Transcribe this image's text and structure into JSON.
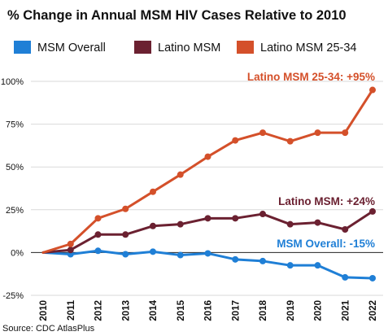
{
  "chart_data": {
    "type": "line",
    "title": "% Change in Annual MSM HIV Cases Relative to 2010",
    "source": "Source: CDC AtlasPlus",
    "x": [
      "2010",
      "2011",
      "2012",
      "2013",
      "2014",
      "2015",
      "2016",
      "2017",
      "2018",
      "2019",
      "2020",
      "2021",
      "2022"
    ],
    "y_ticks": [
      {
        "value": 100,
        "label": "100%"
      },
      {
        "value": 75,
        "label": "75%"
      },
      {
        "value": 50,
        "label": "50%"
      },
      {
        "value": 25,
        "label": "25%"
      },
      {
        "value": 0,
        "label": "0%"
      },
      {
        "value": -25,
        "label": "-25%"
      }
    ],
    "ylim": [
      -25,
      100
    ],
    "grid": true,
    "legend_position": "top",
    "series": [
      {
        "name": "MSM Overall",
        "color": "#1f7fd6",
        "values": [
          0,
          -1,
          1,
          -1,
          0.5,
          -1.5,
          -0.5,
          -4,
          -5,
          -7.5,
          -7.5,
          -14.5,
          -15
        ],
        "annotation": "MSM Overall: -15%"
      },
      {
        "name": "Latino MSM",
        "color": "#6b2131",
        "values": [
          0,
          1.5,
          10.5,
          10.5,
          15.5,
          16.5,
          20,
          20,
          22.5,
          16.5,
          17.5,
          13.5,
          24
        ],
        "annotation": "Latino MSM: +24%"
      },
      {
        "name": "Latino MSM 25-34",
        "color": "#d4502a",
        "values": [
          0,
          5,
          20,
          25.5,
          35.5,
          45.5,
          56,
          65.5,
          70,
          65,
          70,
          70,
          95
        ],
        "annotation": "Latino MSM 25-34: +95%"
      }
    ]
  }
}
